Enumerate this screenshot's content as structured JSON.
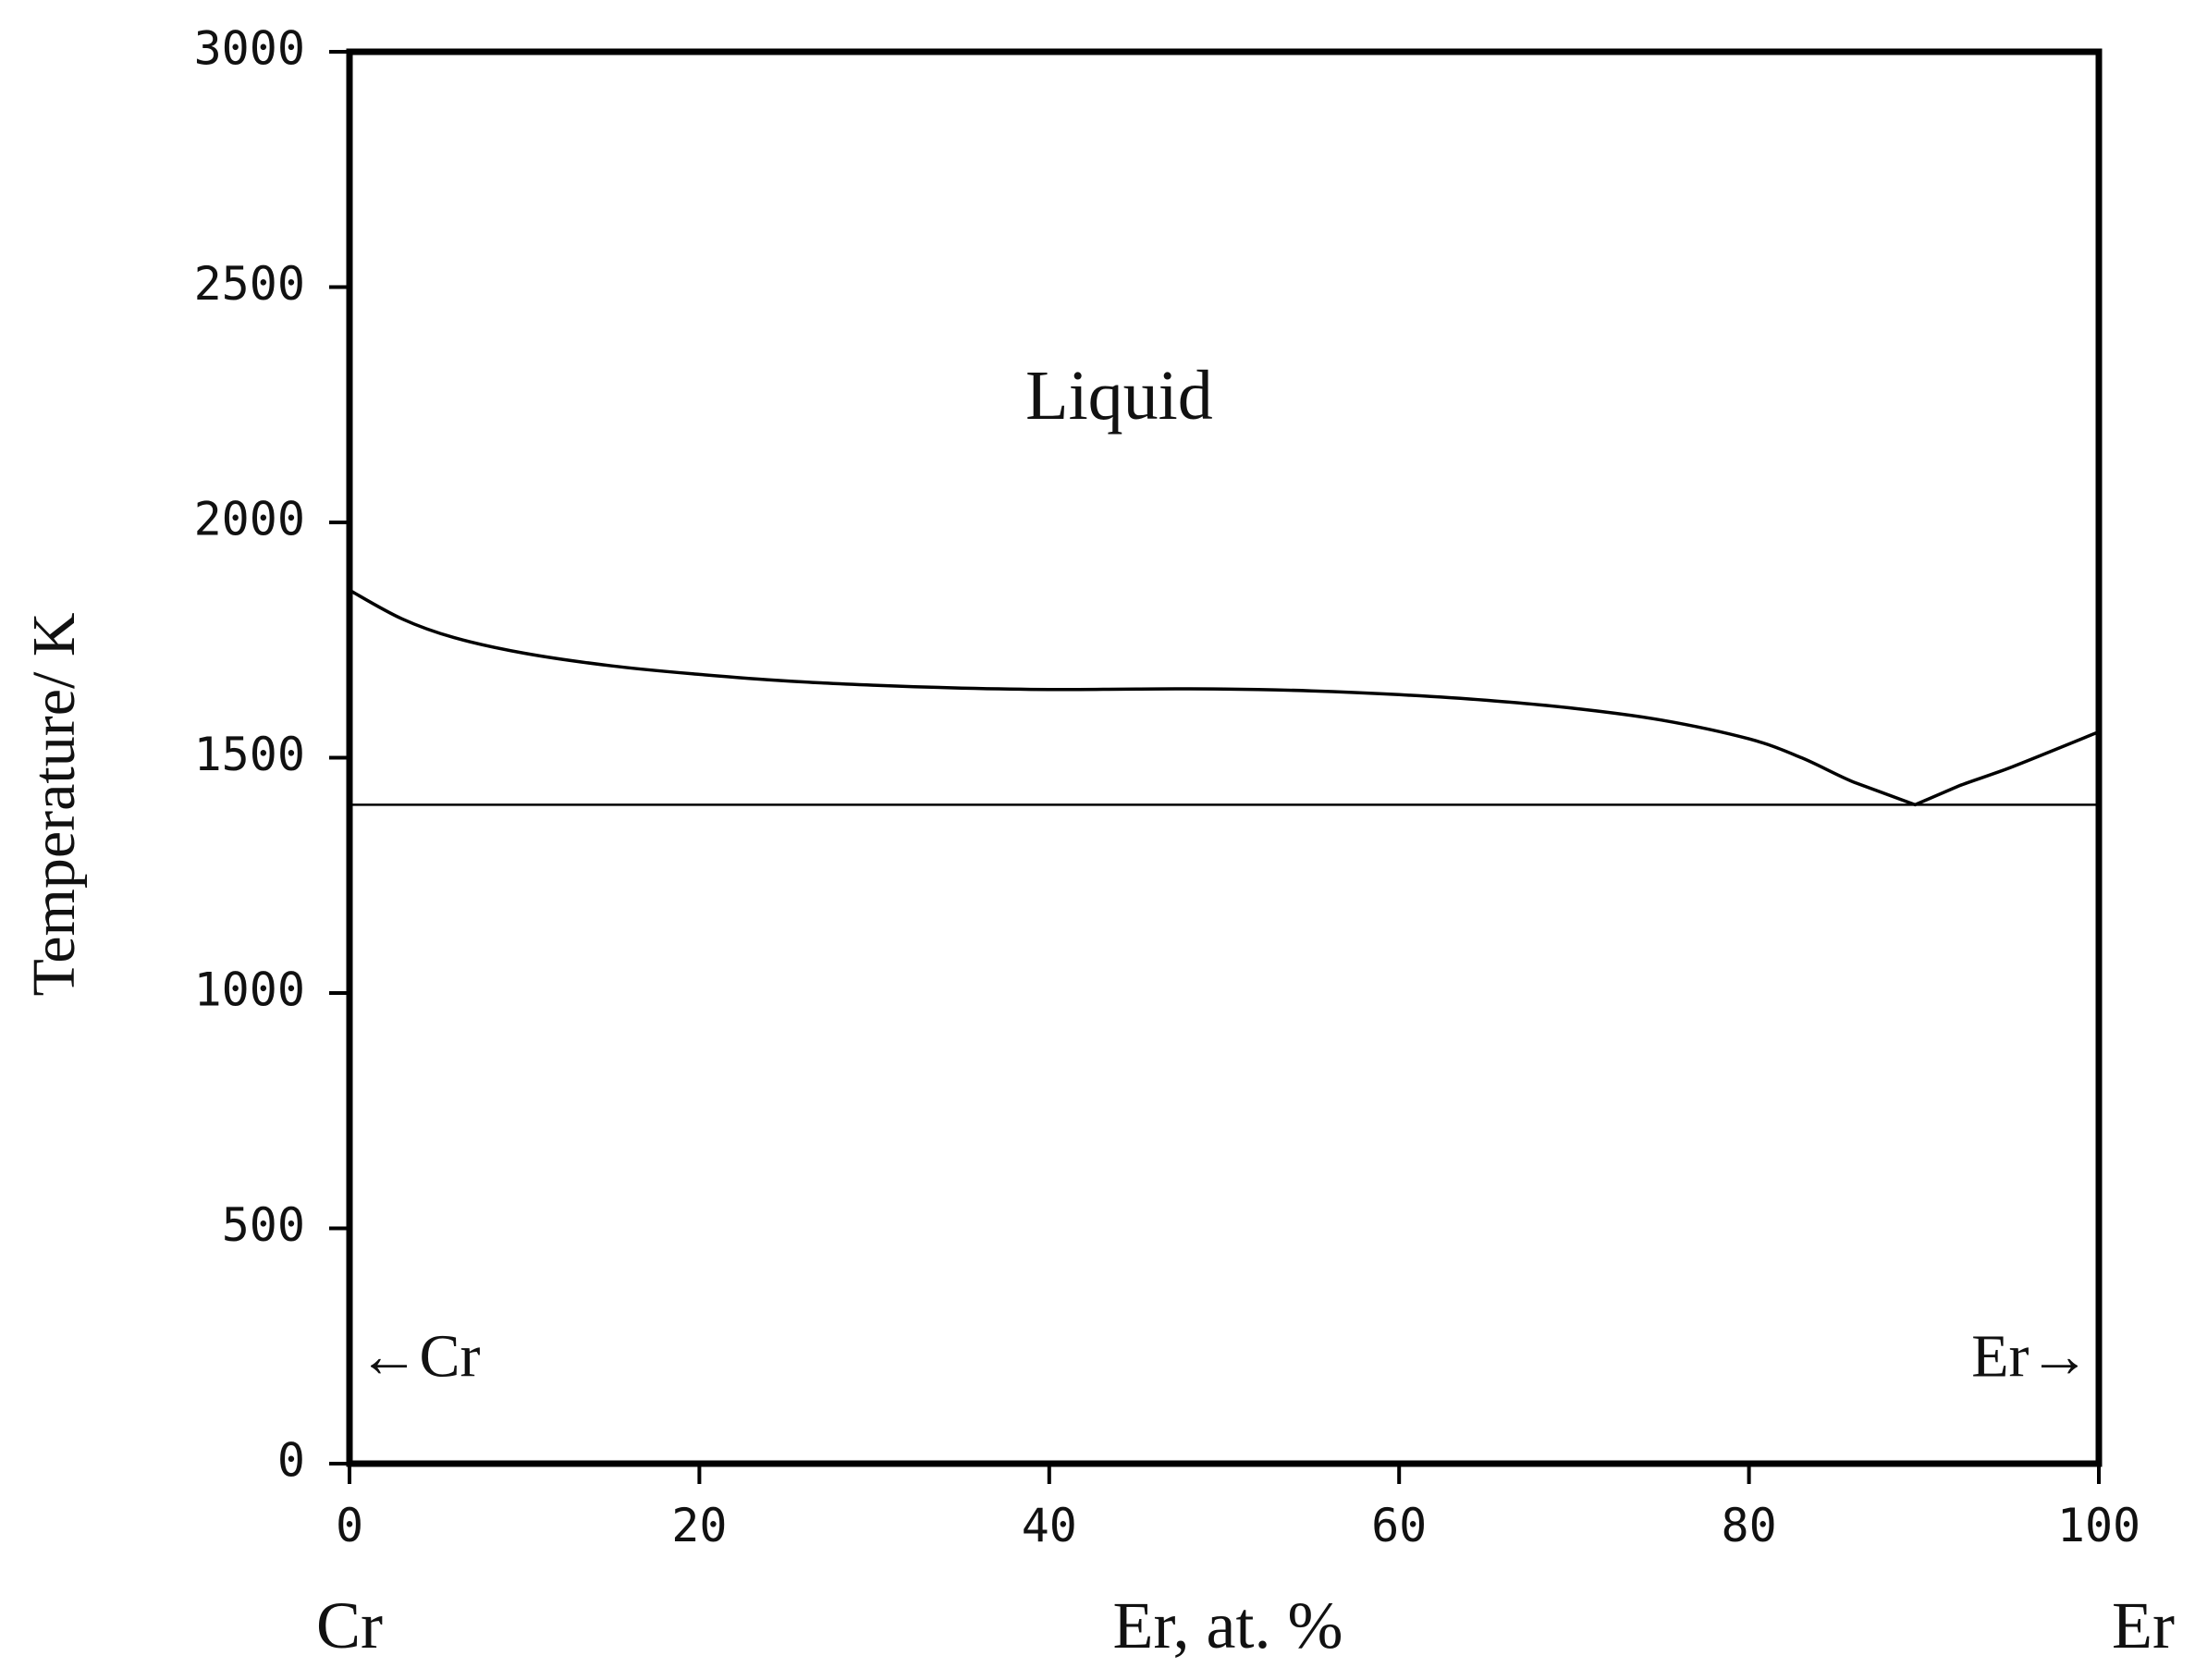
{
  "chart_data": {
    "type": "line",
    "title": "",
    "xlabel": "Er, at. %",
    "ylabel": "Temperature/ K",
    "xlim": [
      0,
      100
    ],
    "ylim": [
      0,
      3000
    ],
    "x_ticks": [
      0,
      20,
      40,
      60,
      80,
      100
    ],
    "y_ticks": [
      0,
      500,
      1000,
      1500,
      2000,
      2500,
      3000
    ],
    "x_end_labels": {
      "left": "Cr",
      "right": "Er"
    },
    "grid": false,
    "series": [
      {
        "name": "",
        "style": "liquidus",
        "x": [
          0,
          3,
          6,
          10,
          15,
          20,
          25,
          30,
          35,
          40,
          45,
          50,
          55,
          60,
          65,
          70,
          75,
          80,
          83,
          86,
          89.5,
          92,
          95,
          100
        ],
        "y": [
          1856,
          1795,
          1755,
          1722,
          1695,
          1677,
          1663,
          1654,
          1648,
          1645,
          1646,
          1646,
          1642,
          1634,
          1622,
          1605,
          1580,
          1540,
          1500,
          1448,
          1400,
          1440,
          1480,
          1555
        ]
      },
      {
        "name": "",
        "style": "eutectic",
        "x": [
          0,
          100
        ],
        "y": [
          1400,
          1400
        ]
      }
    ],
    "annotations": [
      {
        "text": "Liquid",
        "x": 44,
        "y": 2220
      },
      {
        "text": "←Cr",
        "x": 0.5,
        "y": 215
      },
      {
        "text": "Er→",
        "x": 99.5,
        "y": 215
      }
    ]
  }
}
